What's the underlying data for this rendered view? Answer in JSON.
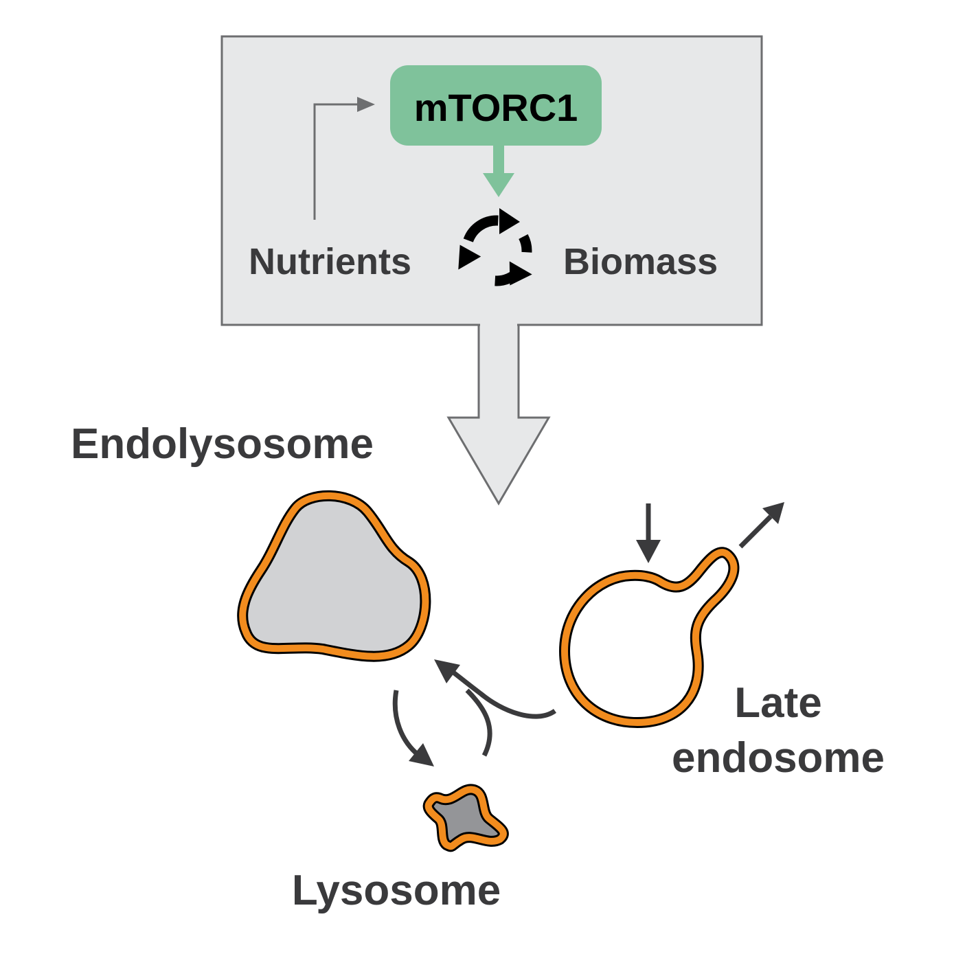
{
  "labels": {
    "mtorc1": "mTORC1",
    "nutrients": "Nutrients",
    "biomass": "Biomass",
    "endolysosome": "Endolysosome",
    "late_endosome_line1": "Late",
    "late_endosome_line2": "endosome",
    "lysosome": "Lysosome"
  },
  "colors": {
    "panel_fill": "#e7e8e9",
    "panel_stroke": "#6d6e70",
    "mtorc1_fill": "#7fc29b",
    "membrane": "#f28c1e",
    "endolysosome_fill": "#d1d2d4",
    "lysosome_fill": "#949598",
    "arrow": "#3a3a3c",
    "text": "#3a3a3c"
  },
  "icons": [
    "cycle-arrows-icon"
  ]
}
